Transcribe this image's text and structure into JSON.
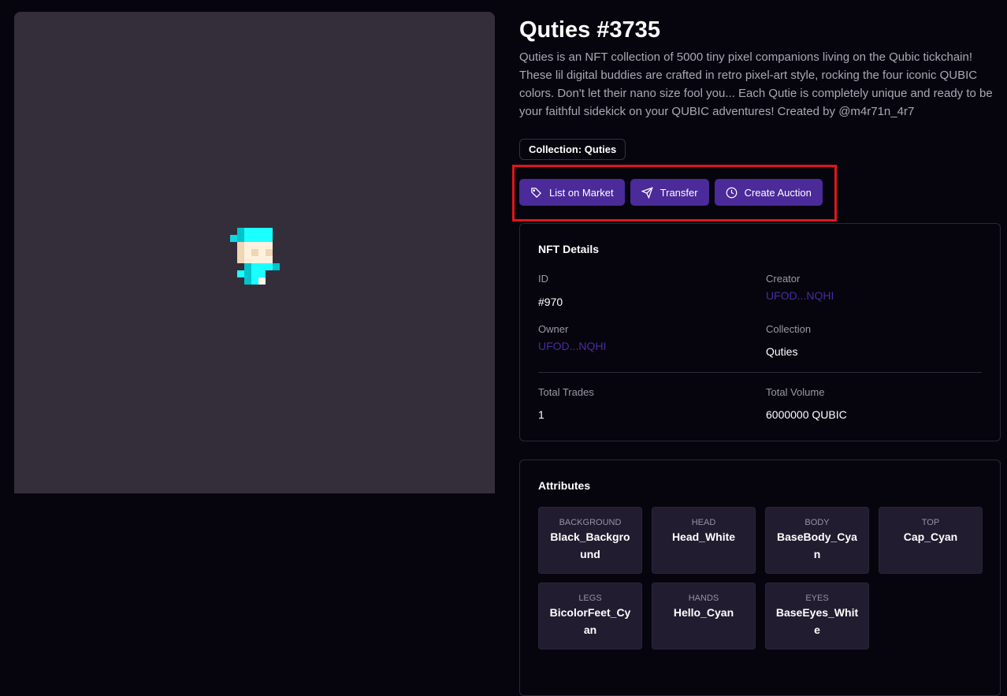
{
  "nft": {
    "title": "Quties #3735",
    "description": "Quties is an NFT collection of 5000 tiny pixel companions living on the Qubic tickchain! These lil digital buddies are crafted in retro pixel-art style, rocking the four iconic QUBIC colors. Don't let their nano size fool you... Each Qutie is completely unique and ready to be your faithful sidekick on your QUBIC adventures! Created by @m4r71n_4r7",
    "collection_badge": "Collection: Quties"
  },
  "actions": [
    {
      "label": "List on Market",
      "icon": "tag-icon"
    },
    {
      "label": "Transfer",
      "icon": "send-icon"
    },
    {
      "label": "Create Auction",
      "icon": "clock-icon"
    }
  ],
  "details": {
    "title": "NFT Details",
    "id_label": "ID",
    "id": "#970",
    "creator_label": "Creator",
    "creator": "UFOD...NQHI",
    "owner_label": "Owner",
    "owner": "UFOD...NQHI",
    "collection_label": "Collection",
    "collection": "Quties",
    "trades_label": "Total Trades",
    "trades": "1",
    "volume_label": "Total Volume",
    "volume": "6000000 QUBIC"
  },
  "attributes": {
    "title": "Attributes",
    "items": [
      {
        "trait": "BACKGROUND",
        "value": "Black_Background"
      },
      {
        "trait": "HEAD",
        "value": "Head_White"
      },
      {
        "trait": "BODY",
        "value": "BaseBody_Cyan"
      },
      {
        "trait": "TOP",
        "value": "Cap_Cyan"
      },
      {
        "trait": "LEGS",
        "value": "BicolorFeet_Cyan"
      },
      {
        "trait": "HANDS",
        "value": "Hello_Cyan"
      },
      {
        "trait": "EYES",
        "value": "BaseEyes_White"
      }
    ]
  },
  "colors": {
    "accent": "#4b2a99",
    "link": "#4a2aa0",
    "highlight": "#e0161a",
    "art_bg": "#342e3b"
  }
}
